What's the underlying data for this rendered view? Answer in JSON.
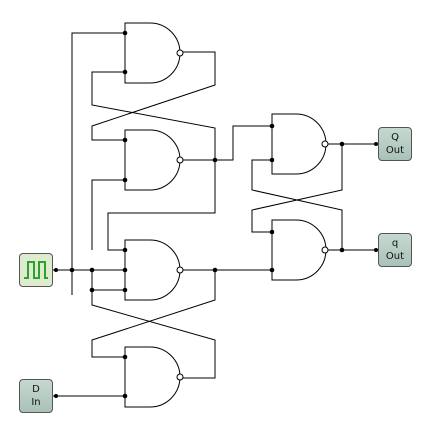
{
  "inputs": {
    "clock": {
      "icon": "clock-pulse-icon"
    },
    "d_input": {
      "line1": "D",
      "line2": "In"
    }
  },
  "outputs": {
    "q_out": {
      "line1": "Q",
      "line2": "Out"
    },
    "q_bar_out": {
      "line1": "q",
      "line2": "Out"
    }
  },
  "colors": {
    "wire": "#000000",
    "gate_fill": "#ffffff",
    "io_fill": "#b7cdc3",
    "clock_fill": "#ddeccf",
    "clock_wave": "#2ea02e"
  },
  "gates": [
    "nand",
    "nand",
    "nand",
    "nand",
    "nand",
    "nand"
  ]
}
